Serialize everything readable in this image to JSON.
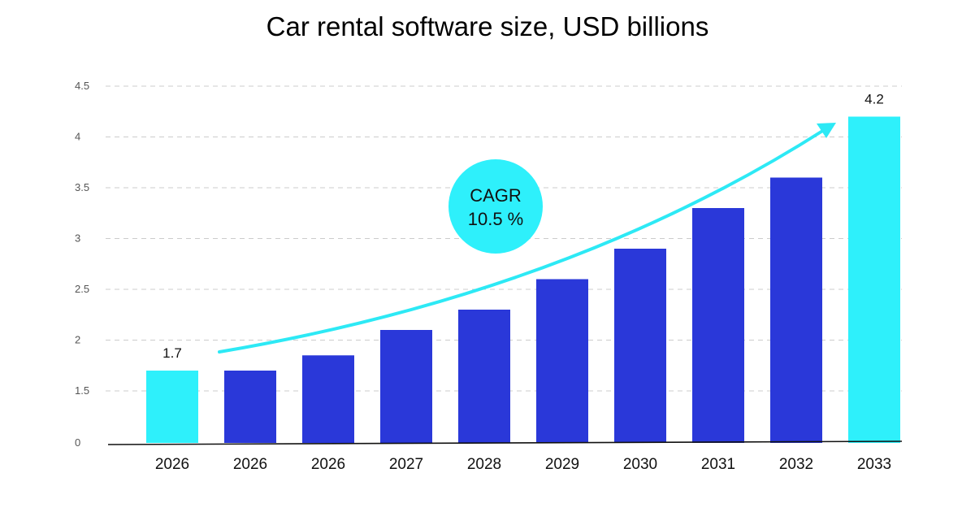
{
  "chart_data": {
    "type": "bar",
    "title": "Car rental software size, USD billions",
    "categories": [
      "2026",
      "2026",
      "2026",
      "2027",
      "2028",
      "2029",
      "2030",
      "2031",
      "2032",
      "2033"
    ],
    "values": [
      1.7,
      1.7,
      1.85,
      2.1,
      2.3,
      2.6,
      2.9,
      3.3,
      3.6,
      4.2
    ],
    "y_ticks": [
      "0",
      "1.5",
      "2",
      "2.5",
      "3",
      "3.5",
      "4",
      "4.5"
    ],
    "ylim": [
      0,
      4.5
    ],
    "grid": true,
    "data_labels": [
      {
        "category_index": 0,
        "text": "1.7"
      },
      {
        "category_index": 9,
        "text": "4.2"
      }
    ],
    "highlight_indices": [
      0,
      9
    ],
    "annotation": {
      "line1": "CAGR",
      "line2": "10.5 %"
    },
    "colors": {
      "bar": "#2a38d9",
      "highlight": "#2ef0fb",
      "arrow": "#2de9f5",
      "grid": "#cccccc",
      "baseline": "#111111"
    }
  }
}
